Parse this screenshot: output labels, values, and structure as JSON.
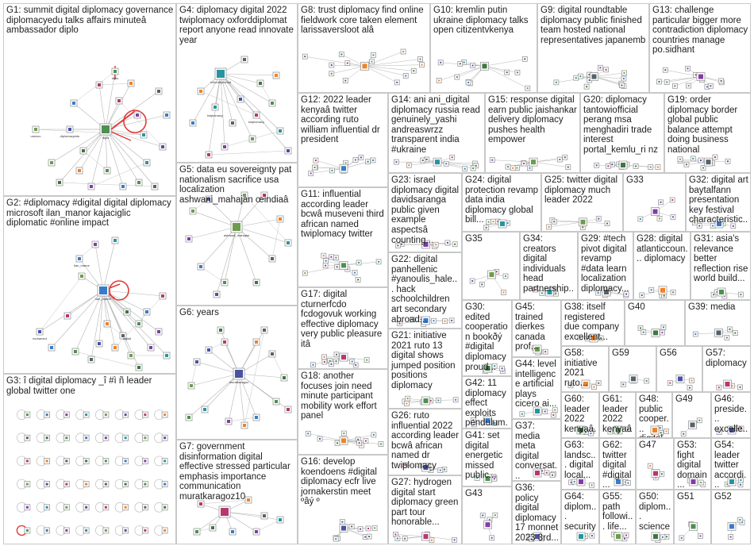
{
  "graph": {
    "groups": [
      {
        "id": "G1",
        "label": "G1: summit digital diplomacy governance diplomacyedu talks affairs minuteâ ambassador diplo"
      },
      {
        "id": "G2",
        "label": "G2: #diplomacy #digital digital diplomacy microsoft ilan_manor kajaciglic diplomatic #online impact"
      },
      {
        "id": "G3",
        "label": "G3: î digital diplomacy _î #ì ñ leader global twitter one"
      },
      {
        "id": "G4",
        "label": "G4: diplomacy digital 2022 twiplomacy oxforddiplomat report anyone read innovate year"
      },
      {
        "id": "G5",
        "label": "G5: data eu sovereignty pat nationalism sacrifice usa localization ashwani_mahajan œindiaâ"
      },
      {
        "id": "G6",
        "label": "G6: years"
      },
      {
        "id": "G7",
        "label": "G7: government disinformation digital effective stressed particular emphasis importance communication muratkaragoz10"
      },
      {
        "id": "G8",
        "label": "G8: trust diplomacy find online fieldwork core taken element larissaversloot alâ"
      },
      {
        "id": "G9",
        "label": "G9: digital roundtable diplomacy public finished team hosted national representatives japanemb"
      },
      {
        "id": "G10",
        "label": "G10: kremlin putin ukraine diplomacy talks open citizentvkenya"
      },
      {
        "id": "G11",
        "label": "G11: influential according leader bcwâ museveni third african named twiplomacy twitter"
      },
      {
        "id": "G12",
        "label": "G12: 2022 leader kenyaâ twitter according ruto william influential dr president"
      },
      {
        "id": "G13",
        "label": "G13: challenge particular bigger more contradiction diplomacy countries manage po.sidhant"
      },
      {
        "id": "G14",
        "label": "G14: ani ani_digital diplomacy russia read genuinely_yashi andreaswrzz transparent india #ukraine"
      },
      {
        "id": "G15",
        "label": "G15: response digital earn public jaishankar delivery diplomacy pushes health empower"
      },
      {
        "id": "G16",
        "label": "G16: develop koendoens #digital diplomacy ecfr live jornakerstin meet ºâý º"
      },
      {
        "id": "G17",
        "label": "G17: digital cturnerfcdo fcdogovuk working effective diplomacy very public pleasure itâ"
      },
      {
        "id": "G18",
        "label": "G18: another focuses join need minute participant mobility work effort panel"
      },
      {
        "id": "G19",
        "label": "G19: order diplomacy border global public balance attempt doing business national"
      },
      {
        "id": "G20",
        "label": "G20: diplomacy tantowiofficial perang msa menghadiri trade interest portal_kemlu_ri nz"
      },
      {
        "id": "G21",
        "label": "G21: initiative 2021 ruto 13 digital shows jumped position positions diplomacy"
      },
      {
        "id": "G22",
        "label": "G22: digital panhellenic #yanoulis_hale... hack schoolchildren art secondary abroad..."
      },
      {
        "id": "G23",
        "label": "G23: israel diplomacy digital davidsaranga public given example aspectsâ counting..."
      },
      {
        "id": "G24",
        "label": "G24: digital protection revamp data india diplomacy global bill..."
      },
      {
        "id": "G25",
        "label": "G25: twitter digital diplomacy much leader 2022"
      },
      {
        "id": "G26",
        "label": "G26: ruto influential 2022 according leader bcwâ african named dr twiplomacy"
      },
      {
        "id": "G27",
        "label": "G27: hydrogen digital start diplomacy green part tour honorable..."
      },
      {
        "id": "G28",
        "label": "G28: digital atlanticcoun... diplomacy"
      },
      {
        "id": "G29",
        "label": "G29: #tech pivot digital revamp #data learn localization diplomacy..."
      },
      {
        "id": "G30",
        "label": "G30: edited cooperation bookðý #digital diplomacy proud..."
      },
      {
        "id": "G31",
        "label": "G31: asia's relevance better reflection rise world build..."
      },
      {
        "id": "G32",
        "label": "G32: digital art baytalfann presentation key festival characteristic..."
      },
      {
        "id": "G33",
        "label": "G33"
      },
      {
        "id": "G34",
        "label": "G34: creators digital individuals head partnership..."
      },
      {
        "id": "G35",
        "label": "G35"
      },
      {
        "id": "G36",
        "label": "G36: policy digital diplomacy 17 monnet 2023 3rd..."
      },
      {
        "id": "G37",
        "label": "G37: media meta digital conversat..."
      },
      {
        "id": "G38",
        "label": "G38: itself registered due company excellent..."
      },
      {
        "id": "G39",
        "label": "G39: media"
      },
      {
        "id": "G40",
        "label": "G40"
      },
      {
        "id": "G41",
        "label": "G41: set digital energetic missed public..."
      },
      {
        "id": "G42",
        "label": "G42: 11 diplomacy effect exploits pendulum..."
      },
      {
        "id": "G43",
        "label": "G43"
      },
      {
        "id": "G44",
        "label": "G44: level intelligence artificial plays cicero ai..."
      },
      {
        "id": "G45",
        "label": "G45: trained dierkes canada prof..."
      },
      {
        "id": "G46",
        "label": "G46: preside... excelle... addifo..."
      },
      {
        "id": "G47",
        "label": "G47"
      },
      {
        "id": "G48",
        "label": "G48: public cooper... digital..."
      },
      {
        "id": "G49",
        "label": "G49"
      },
      {
        "id": "G50",
        "label": "G50: diplom... science"
      },
      {
        "id": "G51",
        "label": "G51"
      },
      {
        "id": "G52",
        "label": "G52"
      },
      {
        "id": "G53",
        "label": "G53: fight digital domain..."
      },
      {
        "id": "G54",
        "label": "G54: leader twitter accordi..."
      },
      {
        "id": "G55",
        "label": "G55: path followi... life..."
      },
      {
        "id": "G56",
        "label": "G56"
      },
      {
        "id": "G57",
        "label": "G57: diplomacy"
      },
      {
        "id": "G58",
        "label": "G58: initiative 2021 ruto..."
      },
      {
        "id": "G59",
        "label": "G59"
      },
      {
        "id": "G60",
        "label": "G60: leader 2022 kenyaâ..."
      },
      {
        "id": "G61",
        "label": "G61: leader 2022 kenyaâ..."
      },
      {
        "id": "G62",
        "label": "G62: twitter digital #digital..."
      },
      {
        "id": "G63",
        "label": "G63: landsc... digital local..."
      },
      {
        "id": "G64",
        "label": "G64: diplom... security"
      }
    ],
    "colors": {
      "edge": "#b4b4b4",
      "highlight_edge": "#e23a3a",
      "border": "#c8c8c8",
      "node_palette": [
        "#2e7d32",
        "#1565c0",
        "#6a1b9a",
        "#00838f",
        "#558b2f",
        "#283593",
        "#ad1457",
        "#ef6c00",
        "#37474f",
        "#1b5e20"
      ]
    }
  }
}
